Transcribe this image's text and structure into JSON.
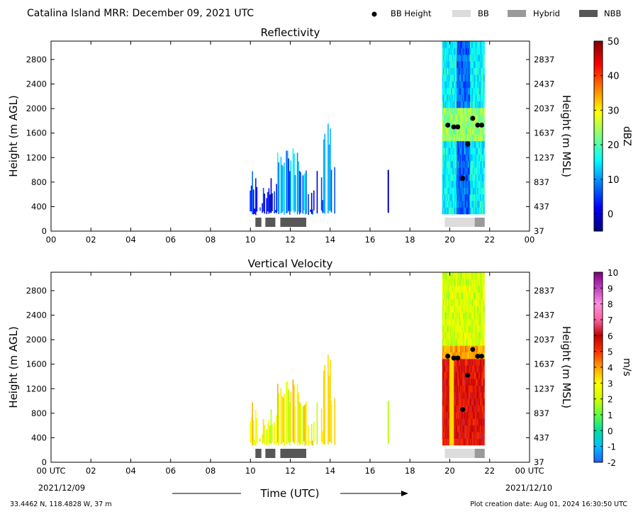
{
  "header": {
    "title": "Catalina Island MRR:  December 09, 2021 UTC",
    "legend": [
      {
        "label": "BB Height",
        "kind": "dot",
        "color": "#000000"
      },
      {
        "label": "BB",
        "kind": "box",
        "color": "#dcdcdc"
      },
      {
        "label": "Hybrid",
        "kind": "box",
        "color": "#9a9a9a"
      },
      {
        "label": "NBB",
        "kind": "box",
        "color": "#575757"
      }
    ]
  },
  "footer": {
    "location": "33.4462 N, 118.4828 W, 37 m",
    "creation": "Plot creation date: Aug 01, 2024 16:30:50 UTC",
    "xlabel": "Time (UTC)",
    "date_left": "2021/12/09",
    "date_right": "2021/12/10"
  },
  "chart_data": [
    {
      "type": "heatmap",
      "title": "Reflectivity",
      "ylabel": "Height (m AGL)",
      "y2label": "Height (m MSL)",
      "xlim": [
        0,
        24
      ],
      "ylim": [
        0,
        3100
      ],
      "x_ticks": [
        "00",
        "02",
        "04",
        "06",
        "08",
        "10",
        "12",
        "14",
        "16",
        "18",
        "20",
        "22",
        "00"
      ],
      "y_ticks": [
        0,
        400,
        800,
        1200,
        1600,
        2000,
        2400,
        2800
      ],
      "y2_ticks": [
        "37",
        "437",
        "837",
        "1237",
        "1637",
        "2037",
        "2437",
        "2837"
      ],
      "colorbar": {
        "label": "dBZ",
        "min": -5,
        "max": 50,
        "ticks": [
          0,
          10,
          20,
          30,
          40,
          50
        ],
        "stops": [
          "#00007f",
          "#0000ff",
          "#007fff",
          "#00ffff",
          "#7fff7f",
          "#ffff00",
          "#ff7f00",
          "#ff0000",
          "#7f0000"
        ]
      },
      "bb_height_points": [
        [
          19.9,
          1730
        ],
        [
          20.2,
          1700
        ],
        [
          20.4,
          1700
        ],
        [
          20.9,
          1420
        ],
        [
          20.65,
          860
        ],
        [
          21.15,
          1840
        ],
        [
          21.4,
          1730
        ],
        [
          21.6,
          1730
        ]
      ],
      "bb_type_bars": [
        {
          "start": 10.25,
          "end": 10.55,
          "type": "NBB"
        },
        {
          "start": 10.75,
          "end": 11.25,
          "type": "NBB"
        },
        {
          "start": 11.5,
          "end": 12.8,
          "type": "NBB"
        },
        {
          "start": 19.75,
          "end": 21.25,
          "type": "BB"
        },
        {
          "start": 21.25,
          "end": 21.75,
          "type": "Hybrid"
        }
      ]
    },
    {
      "type": "heatmap",
      "title": "Vertical Velocity",
      "ylabel": "Height (m AGL)",
      "y2label": "Height (m MSL)",
      "xlim": [
        0,
        24
      ],
      "ylim": [
        0,
        3100
      ],
      "x_ticks": [
        "00 UTC",
        "02",
        "04",
        "06",
        "08",
        "10",
        "12",
        "14",
        "16",
        "18",
        "20",
        "22",
        "00 UTC"
      ],
      "y_ticks": [
        0,
        400,
        800,
        1200,
        1600,
        2000,
        2400,
        2800
      ],
      "y2_ticks": [
        "37",
        "437",
        "837",
        "1237",
        "1637",
        "2037",
        "2437",
        "2837"
      ],
      "colorbar": {
        "label": "m/s",
        "min": -2,
        "max": 10,
        "ticks": [
          -2,
          -1,
          0,
          1,
          2,
          3,
          4,
          5,
          6,
          7,
          8,
          9,
          10
        ],
        "stops": [
          "#1f5fff",
          "#00c0ff",
          "#00e0a0",
          "#60ff40",
          "#d0ff00",
          "#ffff00",
          "#ffa000",
          "#ff3000",
          "#c00000",
          "#ff60a0",
          "#ff90e0",
          "#c040c0",
          "#800080"
        ]
      },
      "bb_height_points": [
        [
          19.9,
          1730
        ],
        [
          20.2,
          1700
        ],
        [
          20.4,
          1700
        ],
        [
          20.9,
          1420
        ],
        [
          20.65,
          860
        ],
        [
          21.15,
          1840
        ],
        [
          21.4,
          1730
        ],
        [
          21.6,
          1730
        ]
      ],
      "bb_type_bars": [
        {
          "start": 10.25,
          "end": 10.55,
          "type": "NBB"
        },
        {
          "start": 10.75,
          "end": 11.25,
          "type": "NBB"
        },
        {
          "start": 11.5,
          "end": 12.8,
          "type": "NBB"
        },
        {
          "start": 19.75,
          "end": 21.25,
          "type": "BB"
        },
        {
          "start": 21.25,
          "end": 21.75,
          "type": "Hybrid"
        }
      ]
    }
  ]
}
